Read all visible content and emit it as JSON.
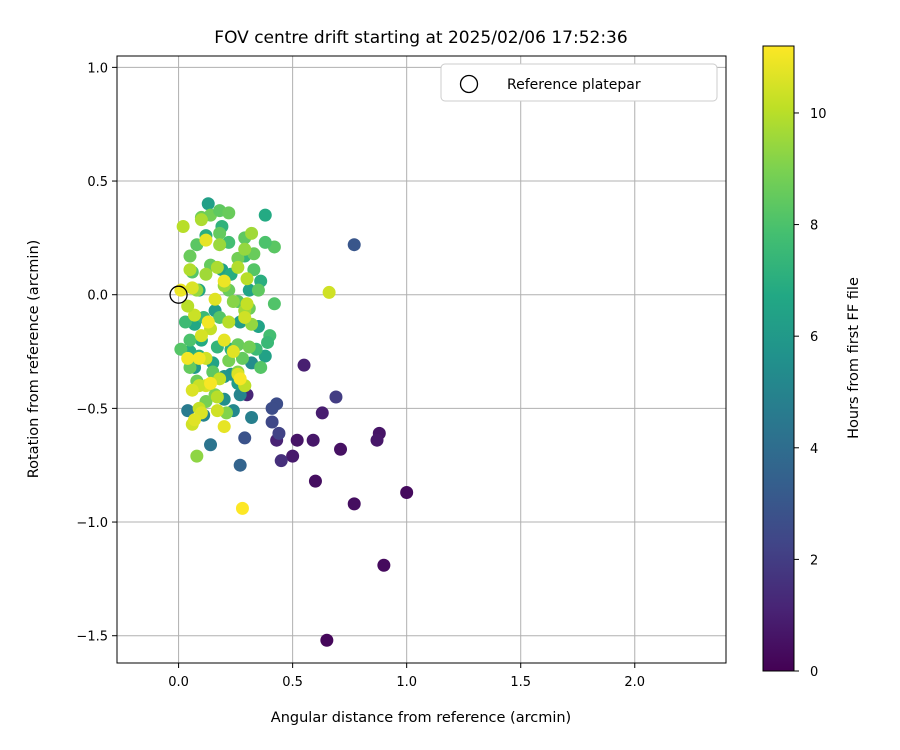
{
  "chart_data": {
    "type": "scatter",
    "title": "FOV centre drift starting at 2025/02/06 17:52:36",
    "xlabel": "Angular distance from reference (arcmin)",
    "ylabel": "Rotation from reference (arcmin)",
    "xlim": [
      -0.27,
      2.4
    ],
    "ylim": [
      -1.62,
      1.05
    ],
    "xticks": [
      0.0,
      0.5,
      1.0,
      1.5,
      2.0
    ],
    "xtick_labels": [
      "0.0",
      "0.5",
      "1.0",
      "1.5",
      "2.0"
    ],
    "yticks": [
      1.0,
      0.5,
      0.0,
      -0.5,
      -1.0,
      -1.5
    ],
    "ytick_labels": [
      "1.0",
      "0.5",
      "0.0",
      "−0.5",
      "−1.0",
      "−1.5"
    ],
    "grid": true,
    "colormap": "viridis",
    "colorbar": {
      "label": "Hours from first FF file",
      "range": [
        0,
        11.2
      ],
      "ticks": [
        0,
        2,
        4,
        6,
        8,
        10
      ],
      "tick_labels": [
        "0",
        "2",
        "4",
        "6",
        "8",
        "10"
      ]
    },
    "legend": {
      "placement": "top-right",
      "entries": [
        {
          "label": "Reference platepar",
          "marker": "open-circle",
          "color": "#000000"
        }
      ]
    },
    "reference_point": {
      "x": 0.0,
      "y": 0.0
    },
    "series": [
      {
        "points": [
          [
            0.65,
            -1.52,
            0.2
          ],
          [
            0.9,
            -1.19,
            0.3
          ],
          [
            1.0,
            -0.87,
            0.3
          ],
          [
            0.77,
            -0.92,
            0.4
          ],
          [
            0.6,
            -0.82,
            0.4
          ],
          [
            0.71,
            -0.68,
            0.5
          ],
          [
            0.88,
            -0.61,
            0.6
          ],
          [
            0.87,
            -0.64,
            0.7
          ],
          [
            0.52,
            -0.64,
            0.6
          ],
          [
            0.59,
            -0.64,
            0.7
          ],
          [
            0.5,
            -0.71,
            0.8
          ],
          [
            0.63,
            -0.52,
            0.9
          ],
          [
            0.55,
            -0.31,
            1.0
          ],
          [
            0.43,
            -0.64,
            1.1
          ],
          [
            0.45,
            -0.73,
            1.5
          ],
          [
            0.3,
            -0.44,
            1.2
          ],
          [
            0.69,
            -0.45,
            2.0
          ],
          [
            0.44,
            -0.61,
            2.2
          ],
          [
            0.41,
            -0.56,
            2.4
          ],
          [
            0.43,
            -0.48,
            2.6
          ],
          [
            0.41,
            -0.5,
            2.6
          ],
          [
            0.29,
            -0.63,
            2.8
          ],
          [
            0.77,
            0.22,
            3.0
          ],
          [
            0.27,
            -0.75,
            3.6
          ],
          [
            0.14,
            -0.66,
            4.3
          ],
          [
            0.32,
            -0.54,
            4.8
          ],
          [
            0.04,
            -0.51,
            4.6
          ],
          [
            0.2,
            -0.46,
            5.5
          ],
          [
            0.11,
            -0.53,
            5.0
          ],
          [
            0.24,
            -0.51,
            5.2
          ],
          [
            0.32,
            -0.3,
            5.4
          ],
          [
            0.27,
            -0.44,
            5.0
          ],
          [
            0.23,
            -0.35,
            5.7
          ],
          [
            0.13,
            0.4,
            6.3
          ],
          [
            0.38,
            0.35,
            6.8
          ],
          [
            0.38,
            -0.27,
            6.4
          ],
          [
            0.35,
            -0.14,
            6.5
          ],
          [
            0.26,
            -0.39,
            6.2
          ],
          [
            0.15,
            -0.3,
            6.5
          ],
          [
            0.07,
            -0.32,
            6.0
          ],
          [
            0.2,
            -0.36,
            5.8
          ],
          [
            0.27,
            -0.12,
            6.2
          ],
          [
            0.1,
            -0.2,
            6.8
          ],
          [
            0.05,
            -0.25,
            6.9
          ],
          [
            0.09,
            0.02,
            6.6
          ],
          [
            0.19,
            0.11,
            6.4
          ],
          [
            0.23,
            0.09,
            6.9
          ],
          [
            0.31,
            0.02,
            6.5
          ],
          [
            0.16,
            -0.07,
            6.2
          ],
          [
            0.07,
            -0.13,
            6.7
          ],
          [
            0.12,
            0.26,
            7.0
          ],
          [
            0.19,
            0.3,
            7.2
          ],
          [
            0.29,
            0.17,
            7.4
          ],
          [
            0.36,
            0.06,
            7.0
          ],
          [
            0.4,
            -0.18,
            7.8
          ],
          [
            0.39,
            -0.21,
            7.5
          ],
          [
            0.34,
            -0.24,
            7.6
          ],
          [
            0.23,
            -0.24,
            7.0
          ],
          [
            0.17,
            -0.23,
            7.3
          ],
          [
            0.11,
            -0.1,
            7.5
          ],
          [
            0.09,
            -0.27,
            7.1
          ],
          [
            0.03,
            -0.12,
            7.6
          ],
          [
            0.05,
            -0.2,
            8.0
          ],
          [
            0.01,
            -0.24,
            8.2
          ],
          [
            0.42,
            -0.04,
            8.1
          ],
          [
            0.42,
            0.21,
            8.3
          ],
          [
            0.38,
            0.23,
            8.0
          ],
          [
            0.29,
            0.25,
            8.4
          ],
          [
            0.22,
            0.23,
            7.8
          ],
          [
            0.14,
            0.13,
            8.5
          ],
          [
            0.08,
            0.22,
            8.3
          ],
          [
            0.05,
            0.17,
            8.6
          ],
          [
            0.06,
            0.1,
            8.2
          ],
          [
            0.14,
            0.35,
            8.8
          ],
          [
            0.18,
            0.37,
            8.4
          ],
          [
            0.22,
            0.36,
            8.6
          ],
          [
            0.1,
            0.34,
            8.7
          ],
          [
            0.18,
            0.27,
            8.5
          ],
          [
            0.26,
            0.16,
            8.8
          ],
          [
            0.33,
            0.11,
            8.2
          ],
          [
            0.33,
            0.18,
            8.6
          ],
          [
            0.35,
            0.02,
            8.4
          ],
          [
            0.31,
            -0.06,
            8.7
          ],
          [
            0.26,
            -0.03,
            8.3
          ],
          [
            0.22,
            0.02,
            8.6
          ],
          [
            0.18,
            -0.1,
            8.2
          ],
          [
            0.26,
            -0.22,
            8.6
          ],
          [
            0.31,
            -0.23,
            8.8
          ],
          [
            0.36,
            -0.32,
            8.2
          ],
          [
            0.28,
            -0.28,
            8.5
          ],
          [
            0.22,
            -0.29,
            8.9
          ],
          [
            0.15,
            -0.34,
            8.4
          ],
          [
            0.08,
            -0.38,
            8.7
          ],
          [
            0.05,
            -0.32,
            8.5
          ],
          [
            0.12,
            -0.47,
            8.9
          ],
          [
            0.16,
            -0.44,
            9.0
          ],
          [
            0.08,
            -0.71,
            9.3
          ],
          [
            0.21,
            -0.52,
            9.1
          ],
          [
            0.29,
            -0.4,
            9.6
          ],
          [
            0.26,
            -0.34,
            9.2
          ],
          [
            0.32,
            -0.13,
            9.4
          ],
          [
            0.29,
            -0.07,
            9.6
          ],
          [
            0.24,
            -0.03,
            9.2
          ],
          [
            0.2,
            0.04,
            9.5
          ],
          [
            0.17,
            0.12,
            9.8
          ],
          [
            0.12,
            0.09,
            9.6
          ],
          [
            0.08,
            0.02,
            9.4
          ],
          [
            0.05,
            0.11,
            9.9
          ],
          [
            0.02,
            0.3,
            10.0
          ],
          [
            0.1,
            0.33,
            9.8
          ],
          [
            0.18,
            0.22,
            9.5
          ],
          [
            0.26,
            0.12,
            9.9
          ],
          [
            0.3,
            0.07,
            10.0
          ],
          [
            0.29,
            0.2,
            9.4
          ],
          [
            0.32,
            0.27,
            9.6
          ],
          [
            0.3,
            -0.04,
            10.2
          ],
          [
            0.29,
            -0.1,
            10.4
          ],
          [
            0.22,
            -0.12,
            10.0
          ],
          [
            0.14,
            -0.15,
            10.2
          ],
          [
            0.1,
            -0.18,
            10.5
          ],
          [
            0.07,
            -0.09,
            10.3
          ],
          [
            0.04,
            -0.05,
            10.0
          ],
          [
            0.12,
            -0.28,
            10.4
          ],
          [
            0.18,
            -0.37,
            10.2
          ],
          [
            0.26,
            -0.35,
            10.6
          ],
          [
            0.29,
            -0.4,
            10.1
          ],
          [
            0.17,
            -0.45,
            10.0
          ],
          [
            0.12,
            -0.4,
            10.5
          ],
          [
            0.09,
            -0.4,
            10.3
          ],
          [
            0.06,
            -0.42,
            10.6
          ],
          [
            0.09,
            -0.5,
            10.2
          ],
          [
            0.1,
            -0.52,
            10.6
          ],
          [
            0.06,
            -0.57,
            10.4
          ],
          [
            0.07,
            -0.55,
            10.7
          ],
          [
            0.2,
            -0.58,
            10.8
          ],
          [
            0.17,
            -0.51,
            10.4
          ],
          [
            0.66,
            0.01,
            10.4
          ],
          [
            0.01,
            0.02,
            10.9
          ],
          [
            0.04,
            -0.28,
            11.0
          ],
          [
            0.06,
            0.03,
            10.6
          ],
          [
            0.12,
            0.24,
            10.8
          ],
          [
            0.16,
            -0.02,
            10.7
          ],
          [
            0.2,
            0.06,
            10.9
          ],
          [
            0.27,
            -0.37,
            11.1
          ],
          [
            0.09,
            -0.28,
            11.0
          ],
          [
            0.14,
            -0.39,
            11.1
          ],
          [
            0.28,
            -0.94,
            11.2
          ],
          [
            0.2,
            -0.2,
            10.8
          ],
          [
            0.13,
            -0.12,
            11.0
          ],
          [
            0.24,
            -0.25,
            10.7
          ]
        ]
      }
    ]
  }
}
